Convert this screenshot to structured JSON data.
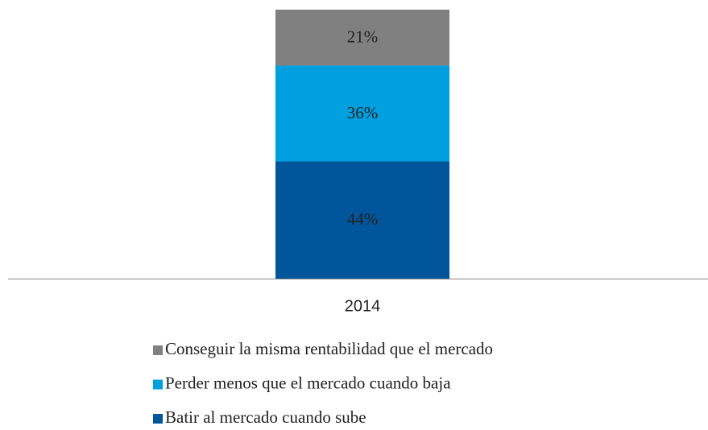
{
  "chart_data": {
    "type": "stacked_bar",
    "categories": [
      "2014"
    ],
    "series": [
      {
        "name": "Batir al mercado cuando sube",
        "color": "#00559b",
        "values": [
          44
        ],
        "value_labels": [
          "44%"
        ]
      },
      {
        "name": "Perder menos que el mercado cuando baja",
        "color": "#009fdf",
        "values": [
          36
        ],
        "value_labels": [
          "36%"
        ]
      },
      {
        "name": "Conseguir la misma rentabilidad que el mercado",
        "color": "#808080",
        "values": [
          21
        ],
        "value_labels": [
          "21%"
        ]
      }
    ],
    "ylim": [
      0,
      101
    ],
    "legend": "bottom"
  }
}
